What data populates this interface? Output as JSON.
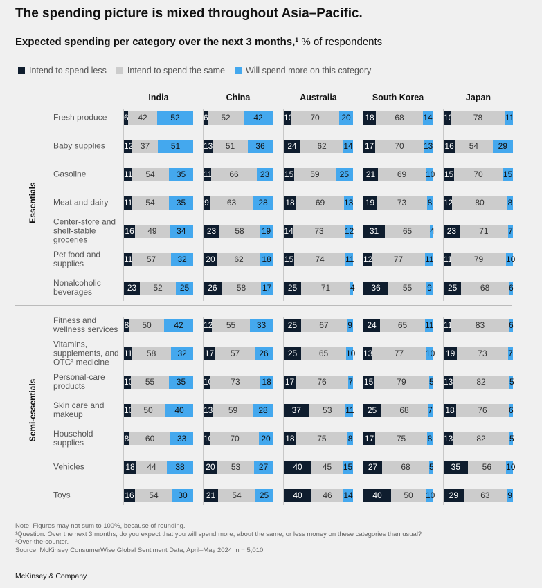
{
  "title": "The spending picture is mixed throughout Asia–Pacific.",
  "subtitle_bold": "Expected spending per category over the next 3 months,¹",
  "subtitle_rest": " % of respondents",
  "colors": {
    "less": "#0f1d2e",
    "same": "#cccccc",
    "more": "#44a8ee"
  },
  "chart_data": {
    "type": "bar",
    "orientation": "horizontal-stacked-100",
    "legend": [
      "Intend to spend less",
      "Intend to spend the same",
      "Will spend more on this category"
    ],
    "legend_placement": "top-left",
    "countries": [
      "India",
      "China",
      "Australia",
      "South Korea",
      "Japan"
    ],
    "groups": [
      {
        "name": "Essentials",
        "categories": [
          {
            "label": "Fresh produce",
            "values": [
              [
                6,
                42,
                52
              ],
              [
                6,
                52,
                42
              ],
              [
                10,
                70,
                20
              ],
              [
                18,
                68,
                14
              ],
              [
                10,
                78,
                11
              ]
            ]
          },
          {
            "label": "Baby supplies",
            "values": [
              [
                12,
                37,
                51
              ],
              [
                13,
                51,
                36
              ],
              [
                24,
                62,
                14
              ],
              [
                17,
                70,
                13
              ],
              [
                16,
                54,
                29
              ]
            ]
          },
          {
            "label": "Gasoline",
            "values": [
              [
                11,
                54,
                35
              ],
              [
                11,
                66,
                23
              ],
              [
                15,
                59,
                25
              ],
              [
                21,
                69,
                10
              ],
              [
                15,
                70,
                15
              ]
            ]
          },
          {
            "label": "Meat and dairy",
            "values": [
              [
                11,
                54,
                35
              ],
              [
                9,
                63,
                28
              ],
              [
                18,
                69,
                13
              ],
              [
                19,
                73,
                8
              ],
              [
                12,
                80,
                8
              ]
            ]
          },
          {
            "label": "Center-store and shelf-stable groceries",
            "values": [
              [
                16,
                49,
                34
              ],
              [
                23,
                58,
                19
              ],
              [
                14,
                73,
                12
              ],
              [
                31,
                65,
                4
              ],
              [
                23,
                71,
                7
              ]
            ]
          },
          {
            "label": "Pet food and supplies",
            "values": [
              [
                11,
                57,
                32
              ],
              [
                20,
                62,
                18
              ],
              [
                15,
                74,
                11
              ],
              [
                12,
                77,
                11
              ],
              [
                11,
                79,
                10
              ]
            ]
          },
          {
            "label": "Nonalcoholic beverages",
            "values": [
              [
                23,
                52,
                25
              ],
              [
                26,
                58,
                17
              ],
              [
                25,
                71,
                4
              ],
              [
                36,
                55,
                9
              ],
              [
                25,
                68,
                6
              ]
            ]
          }
        ]
      },
      {
        "name": "Semi-essentials",
        "categories": [
          {
            "label": "Fitness and wellness services",
            "values": [
              [
                8,
                50,
                42
              ],
              [
                12,
                55,
                33
              ],
              [
                25,
                67,
                9
              ],
              [
                24,
                65,
                11
              ],
              [
                11,
                83,
                6
              ]
            ]
          },
          {
            "label": "Vitamins, supplements, and OTC² medicine",
            "values": [
              [
                11,
                58,
                32
              ],
              [
                17,
                57,
                26
              ],
              [
                25,
                65,
                10
              ],
              [
                13,
                77,
                10
              ],
              [
                19,
                73,
                7
              ]
            ]
          },
          {
            "label": "Personal-care products",
            "values": [
              [
                10,
                55,
                35
              ],
              [
                10,
                73,
                18
              ],
              [
                17,
                76,
                7
              ],
              [
                15,
                79,
                5
              ],
              [
                13,
                82,
                5
              ]
            ]
          },
          {
            "label": "Skin care and makeup",
            "values": [
              [
                10,
                50,
                40
              ],
              [
                13,
                59,
                28
              ],
              [
                37,
                53,
                11
              ],
              [
                25,
                68,
                7
              ],
              [
                18,
                76,
                6
              ]
            ]
          },
          {
            "label": "Household supplies",
            "values": [
              [
                8,
                60,
                33
              ],
              [
                10,
                70,
                20
              ],
              [
                18,
                75,
                8
              ],
              [
                17,
                75,
                8
              ],
              [
                13,
                82,
                5
              ]
            ]
          },
          {
            "label": "Vehicles",
            "values": [
              [
                18,
                44,
                38
              ],
              [
                20,
                53,
                27
              ],
              [
                40,
                45,
                15
              ],
              [
                27,
                68,
                5
              ],
              [
                35,
                56,
                10
              ]
            ]
          },
          {
            "label": "Toys",
            "values": [
              [
                16,
                54,
                30
              ],
              [
                21,
                54,
                25
              ],
              [
                40,
                46,
                14
              ],
              [
                40,
                50,
                10
              ],
              [
                29,
                63,
                9
              ]
            ]
          }
        ]
      }
    ]
  },
  "notes": [
    "Note: Figures may not sum to 100%, because of rounding.",
    "¹Question: Over the next 3 months, do you expect that you will spend more, about the same, or less money on these categories than usual?",
    "²Over-the-counter.",
    "Source: McKinsey ConsumerWise Global Sentiment Data, April–May 2024, n = 5,010"
  ],
  "brand": "McKinsey & Company"
}
